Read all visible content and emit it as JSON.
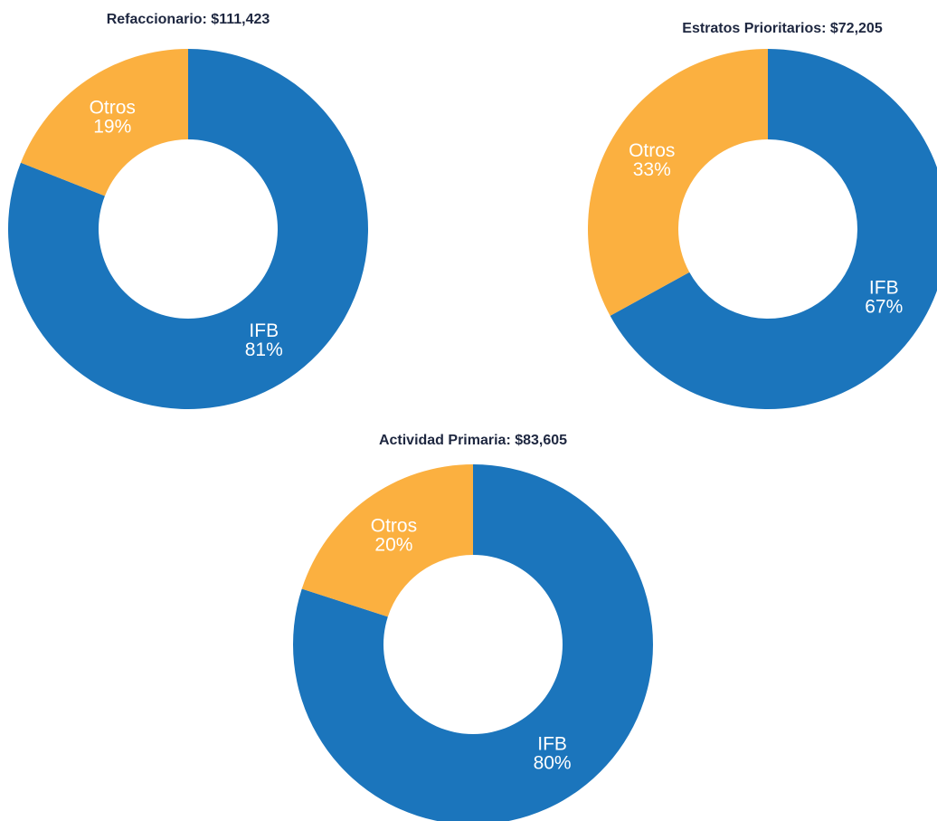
{
  "chart_data": [
    {
      "type": "pie",
      "title": "Refaccionario: $111,423",
      "categories": [
        "IFB",
        "Otros"
      ],
      "values": [
        81,
        19
      ],
      "value_labels": [
        "81%",
        "19%"
      ],
      "colors": [
        "#1b75bc",
        "#fbb040"
      ]
    },
    {
      "type": "pie",
      "title": "Estratos Prioritarios: $72,205",
      "categories": [
        "IFB",
        "Otros"
      ],
      "values": [
        67,
        33
      ],
      "value_labels": [
        "67%",
        "33%"
      ],
      "colors": [
        "#1b75bc",
        "#fbb040"
      ]
    },
    {
      "type": "pie",
      "title": "Actividad Primaria: $83,605",
      "categories": [
        "IFB",
        "Otros"
      ],
      "values": [
        80,
        20
      ],
      "value_labels": [
        "80%",
        "20%"
      ],
      "colors": [
        "#1b75bc",
        "#fbb040"
      ]
    }
  ]
}
